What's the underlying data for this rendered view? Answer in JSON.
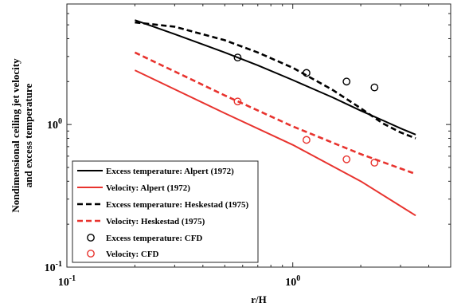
{
  "chart_data": {
    "type": "line",
    "xlabel": "r/H",
    "ylabel": "Nondimensional ceiling jet velocity and excess temperature",
    "ylabel_lines": [
      "Nondimensional ceiling jet velocity",
      "and excess temperature"
    ],
    "x_scale": "log",
    "y_scale": "log",
    "xlim": [
      0.1,
      5
    ],
    "ylim": [
      0.1,
      7
    ],
    "x_ticks": [
      {
        "value": 0.1,
        "base": "10",
        "exp": "-1"
      },
      {
        "value": 1,
        "base": "10",
        "exp": "0"
      }
    ],
    "y_ticks": [
      {
        "value": 0.1,
        "base": "10",
        "exp": "-1"
      },
      {
        "value": 1,
        "base": "10",
        "exp": "0"
      }
    ],
    "grid": false,
    "legend_position": "bottom-left",
    "series": [
      {
        "name": "Excess temperature: Alpert (1972)",
        "style": "solid",
        "color": "#000000",
        "x": [
          0.2,
          0.3,
          0.5,
          0.7,
          1.0,
          1.5,
          2.0,
          2.5,
          3.0,
          3.5
        ],
        "y": [
          5.4,
          4.3,
          3.2,
          2.6,
          2.05,
          1.55,
          1.25,
          1.07,
          0.94,
          0.85
        ]
      },
      {
        "name": "Velocity: Alpert (1972)",
        "style": "solid",
        "color": "#e8332e",
        "x": [
          0.2,
          0.5,
          1.0,
          2.0,
          3.5
        ],
        "y": [
          2.4,
          1.2,
          0.72,
          0.4,
          0.23
        ]
      },
      {
        "name": "Excess temperature: Heskestad (1975)",
        "style": "dashed",
        "color": "#000000",
        "x": [
          0.2,
          0.3,
          0.5,
          0.7,
          1.0,
          1.5,
          2.0,
          2.5,
          3.0,
          3.5
        ],
        "y": [
          5.2,
          4.85,
          3.9,
          3.2,
          2.5,
          1.75,
          1.3,
          1.02,
          0.88,
          0.8
        ]
      },
      {
        "name": "Velocity: Heskestad (1975)",
        "style": "dashed",
        "color": "#e8332e",
        "x": [
          0.2,
          0.5,
          1.0,
          2.0,
          3.5
        ],
        "y": [
          3.2,
          1.6,
          0.97,
          0.62,
          0.45
        ]
      },
      {
        "name": "Excess temperature: CFD",
        "style": "marker",
        "color": "#000000",
        "x": [
          0.57,
          1.15,
          1.73,
          2.3
        ],
        "y": [
          2.95,
          2.3,
          2.0,
          1.82
        ]
      },
      {
        "name": "Velocity: CFD",
        "style": "marker",
        "color": "#e8332e",
        "x": [
          0.57,
          1.15,
          1.73,
          2.3
        ],
        "y": [
          1.45,
          0.78,
          0.57,
          0.54
        ]
      }
    ]
  }
}
